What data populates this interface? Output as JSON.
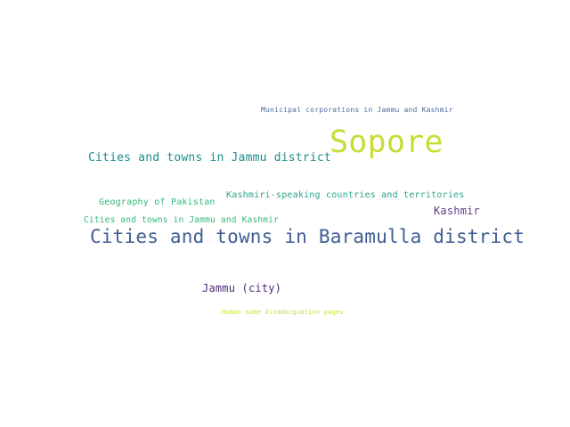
{
  "word_cloud": {
    "background": "#ffffff",
    "words": [
      {
        "text": "Municipal corporations in Jammu and Kashmir",
        "color": "#4b6a9e"
      },
      {
        "text": "Sopore",
        "color": "#c7dd35"
      },
      {
        "text": "Cities and towns in Jammu district",
        "color": "#1e8c8c"
      },
      {
        "text": "Kashmiri-speaking countries and territories",
        "color": "#2aa58a"
      },
      {
        "text": "Geography of Pakistan",
        "color": "#35b779"
      },
      {
        "text": "Kashmir",
        "color": "#5a3f87"
      },
      {
        "text": "Cities and towns in Jammu and Kashmir",
        "color": "#35b779"
      },
      {
        "text": "Cities and towns in Baramulla district",
        "color": "#3e5f93"
      },
      {
        "text": "Jammu (city)",
        "color": "#4d2a78"
      },
      {
        "text": "Human name disambiguation pages",
        "color": "#c7dd35"
      }
    ]
  }
}
